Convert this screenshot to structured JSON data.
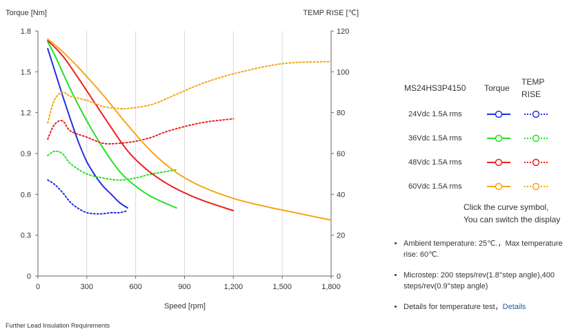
{
  "chart_data": {
    "type": "line",
    "left_axis_title": "Torque  [Nm]",
    "right_axis_title": "TEMP RISE [℃]",
    "xlabel": "Speed [rpm]",
    "xlim": [
      0,
      1800
    ],
    "ylim_left": [
      0,
      1.8
    ],
    "ylim_right": [
      0,
      120
    ],
    "x_ticks": [
      "0",
      "300",
      "600",
      "900",
      "1,200",
      "1,500",
      "1,800"
    ],
    "y_left_ticks": [
      "0",
      "0.3",
      "0.6",
      "0.9",
      "1.2",
      "1.5",
      "1.8"
    ],
    "y_right_ticks": [
      "0",
      "20",
      "40",
      "60",
      "80",
      "100",
      "120"
    ],
    "grid": "vertical",
    "series": [
      {
        "name": "24Vdc  1.5A rms",
        "kind": "torque",
        "color": "#1f2fe0",
        "x": [
          60,
          100,
          150,
          200,
          250,
          300,
          350,
          400,
          450,
          500,
          550
        ],
        "y": [
          1.67,
          1.52,
          1.33,
          1.15,
          0.98,
          0.84,
          0.74,
          0.66,
          0.6,
          0.54,
          0.5
        ]
      },
      {
        "name": "24Vdc  1.5A rms",
        "kind": "temp",
        "color": "#1f2fe0",
        "x": [
          60,
          100,
          150,
          200,
          250,
          300,
          350,
          400,
          450,
          500,
          550
        ],
        "y": [
          47,
          45,
          41,
          36,
          33,
          31,
          30.5,
          30.5,
          31,
          31,
          32
        ]
      },
      {
        "name": "36Vdc  1.5A rms",
        "kind": "torque",
        "color": "#22e022",
        "x": [
          60,
          100,
          150,
          200,
          300,
          400,
          500,
          600,
          700,
          850
        ],
        "y": [
          1.72,
          1.63,
          1.5,
          1.37,
          1.14,
          0.94,
          0.77,
          0.66,
          0.58,
          0.5
        ]
      },
      {
        "name": "36Vdc  1.5A rms",
        "kind": "temp",
        "color": "#22e022",
        "x": [
          60,
          100,
          150,
          200,
          300,
          400,
          500,
          600,
          700,
          850
        ],
        "y": [
          59,
          61,
          60,
          55,
          50,
          48,
          47,
          48,
          50,
          52
        ]
      },
      {
        "name": "48Vdc  1.5A rms",
        "kind": "torque",
        "color": "#ee1c1c",
        "x": [
          60,
          150,
          250,
          350,
          450,
          550,
          650,
          750,
          850,
          1000,
          1200
        ],
        "y": [
          1.73,
          1.62,
          1.45,
          1.27,
          1.09,
          0.92,
          0.8,
          0.71,
          0.64,
          0.56,
          0.48
        ]
      },
      {
        "name": "48Vdc  1.5A rms",
        "kind": "temp",
        "color": "#ee1c1c",
        "x": [
          60,
          100,
          150,
          200,
          300,
          400,
          500,
          600,
          700,
          800,
          1000,
          1200
        ],
        "y": [
          67,
          74,
          76,
          71,
          68,
          65,
          65,
          66,
          68,
          71,
          75,
          77
        ]
      },
      {
        "name": "60Vdc  1.5A rms",
        "kind": "torque",
        "color": "#f5a512",
        "x": [
          60,
          150,
          250,
          400,
          550,
          700,
          850,
          1000,
          1200,
          1400,
          1600,
          1800
        ],
        "y": [
          1.74,
          1.65,
          1.53,
          1.33,
          1.11,
          0.91,
          0.76,
          0.66,
          0.57,
          0.51,
          0.46,
          0.41
        ]
      },
      {
        "name": "60Vdc  1.5A rms",
        "kind": "temp",
        "color": "#f5a512",
        "x": [
          60,
          100,
          150,
          200,
          300,
          400,
          500,
          550,
          700,
          850,
          1000,
          1200,
          1500,
          1800
        ],
        "y": [
          75,
          86,
          90,
          88,
          86,
          83,
          82,
          82,
          84,
          89,
          94,
          99,
          104,
          105
        ]
      }
    ]
  },
  "legend": {
    "model": "MS24HS3P4150",
    "col_torque": "Torque",
    "col_temp": "TEMP RISE",
    "rows": [
      {
        "label": "24Vdc   1.5A rms",
        "color": "#1f2fe0"
      },
      {
        "label": "36Vdc   1.5A rms",
        "color": "#22e022"
      },
      {
        "label": "48Vdc   1.5A rms",
        "color": "#ee1c1c"
      },
      {
        "label": "60Vdc   1.5A rms",
        "color": "#f5a512"
      }
    ],
    "hint_line1": "Click the curve symbol,",
    "hint_line2": "You can switch the display"
  },
  "notes": {
    "ambient": "Ambient temperature: 25℃.，Max temperature rise: 60℃.",
    "microstep": "Microstep: 200 steps/rev(1.8°step angle),400 steps/rev(0.9°step angle)",
    "details_prefix": "Details for temperature test，",
    "details_link": "Details"
  },
  "footer": {
    "text": "Further Lead Insulation Requirements"
  }
}
